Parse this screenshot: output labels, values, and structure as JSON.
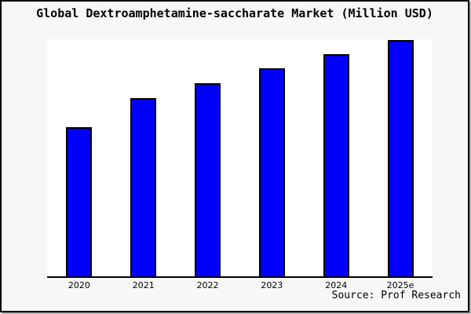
{
  "title": "Global Dextroamphetamine-saccharate Market (Million USD)",
  "source_credit": "Source: Prof Research",
  "colors": {
    "bar_fill": "#0000fa",
    "bar_border": "#000000",
    "background": "#f7f7f7",
    "plot_background": "#ffffff",
    "frame_border": "#000000",
    "text": "#000000"
  },
  "chart_data": {
    "type": "bar",
    "title": "Global Dextroamphetamine-saccharate Market (Million USD)",
    "categories": [
      "2020",
      "2021",
      "2022",
      "2023",
      "2024",
      "2025e"
    ],
    "values": [
      63.1,
      75.4,
      81.7,
      88.0,
      94.0,
      100.0
    ],
    "units": "relative bar height (no y-axis scale shown; normalized to 2025e = 100)",
    "xlabel": "",
    "ylabel": "",
    "ylim": [
      0,
      100.2
    ],
    "grid": false,
    "legend": "none",
    "annotations": [
      "Source: Prof Research"
    ]
  }
}
